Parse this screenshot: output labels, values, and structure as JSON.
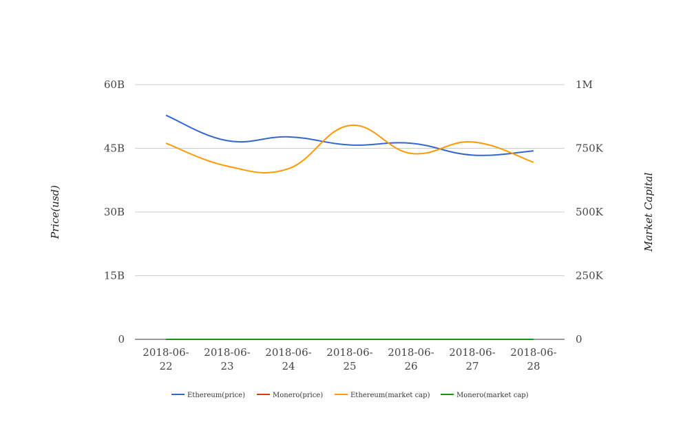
{
  "chart_data": {
    "type": "line",
    "categories": [
      "2018-06-22",
      "2018-06-23",
      "2018-06-24",
      "2018-06-25",
      "2018-06-26",
      "2018-06-27",
      "2018-06-28"
    ],
    "category_labels": [
      [
        "2018-06-",
        "22"
      ],
      [
        "2018-06-",
        "23"
      ],
      [
        "2018-06-",
        "24"
      ],
      [
        "2018-06-",
        "25"
      ],
      [
        "2018-06-",
        "26"
      ],
      [
        "2018-06-",
        "27"
      ],
      [
        "2018-06-",
        "28"
      ]
    ],
    "ylabel_left": "Price(usd)",
    "ylabel_right": "Market Capital",
    "ylim_left": [
      0,
      60000000000
    ],
    "ylim_right": [
      0,
      1000000
    ],
    "yticks_left": [
      "0",
      "15B",
      "30B",
      "45B",
      "60B"
    ],
    "yticks_right": [
      "0",
      "250K",
      "500K",
      "750K",
      "1M"
    ],
    "grid": true,
    "legend_position": "bottom",
    "series": [
      {
        "name": "Ethereum(price)",
        "axis": "left",
        "color": "#3366cc",
        "values": [
          52800000000,
          46800000000,
          47700000000,
          45800000000,
          46200000000,
          43400000000,
          44400000000
        ]
      },
      {
        "name": "Monero(price)",
        "axis": "left",
        "color": "#dc3912",
        "values": [
          0,
          0,
          0,
          0,
          0,
          0,
          0
        ]
      },
      {
        "name": "Ethereum(market cap)",
        "axis": "right",
        "color": "#ff9900",
        "values": [
          770000,
          680000,
          670000,
          840000,
          730000,
          775000,
          695000
        ]
      },
      {
        "name": "Monero(market cap)",
        "axis": "right",
        "color": "#109618",
        "values": [
          0,
          0,
          0,
          0,
          0,
          0,
          0
        ]
      }
    ]
  }
}
